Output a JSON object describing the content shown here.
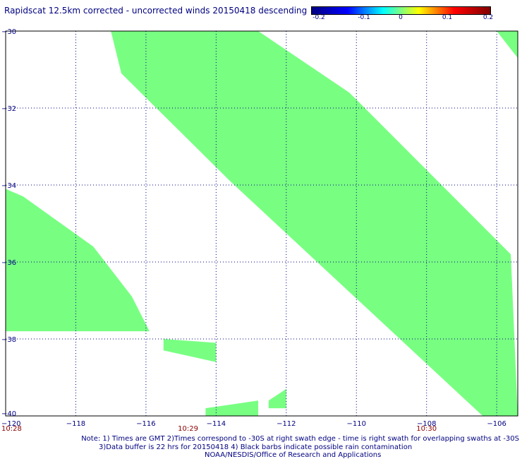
{
  "title": "Rapidscat 12.5km corrected - uncorrected winds 20150418 descending",
  "colorbar": {
    "labels": [
      "-0.2",
      "-0.1",
      "0",
      "0.1",
      "0.2"
    ],
    "values": [
      -0.2,
      -0.1,
      0,
      0.1,
      0.2
    ],
    "stops": [
      "#000080",
      "#0000ff",
      "#00ffff",
      "#ffff00",
      "#ff0000",
      "#800000"
    ]
  },
  "map": {
    "lon_range": [
      -120,
      -105.4
    ],
    "lat_range": [
      -40,
      -30
    ],
    "lon_ticks": [
      {
        "value": -118,
        "label": "−118"
      },
      {
        "value": -116,
        "label": "−116"
      },
      {
        "value": -114,
        "label": "−114"
      },
      {
        "value": -112,
        "label": "−112"
      },
      {
        "value": -110,
        "label": "−110"
      },
      {
        "value": -108,
        "label": "−108"
      },
      {
        "value": -106,
        "label": "−106"
      }
    ],
    "lat_ticks": [
      {
        "value": -30,
        "label": "−30"
      },
      {
        "value": -32,
        "label": "−32"
      },
      {
        "value": -34,
        "label": "−34"
      },
      {
        "value": -36,
        "label": "−36"
      },
      {
        "value": -38,
        "label": "−38"
      },
      {
        "value": -40,
        "label": "−40"
      }
    ],
    "corner_label": "−120",
    "times": [
      {
        "lon": -120,
        "label": "10:28"
      },
      {
        "lon": -114.8,
        "label": "10:29"
      },
      {
        "lon": -108,
        "label": "10:30"
      }
    ],
    "swath_color": "#78ff82",
    "grid_color": "#000080"
  },
  "chart_data": {
    "type": "map",
    "title": "Rapidscat 12.5km corrected - uncorrected winds 20150418 descending",
    "x_axis": "longitude",
    "y_axis": "latitude",
    "xlim": [
      -120,
      -105.4
    ],
    "ylim": [
      -40,
      -30
    ],
    "field_value_range": [
      -0.2,
      0.2
    ],
    "observed_value": 0,
    "swaths": [
      {
        "name": "main swath",
        "polygon": [
          [
            -117,
            -30
          ],
          [
            -112.8,
            -30
          ],
          [
            -110.2,
            -31.6
          ],
          [
            -105.6,
            -35.8
          ],
          [
            -105.4,
            -40
          ],
          [
            -106.4,
            -40
          ],
          [
            -113.6,
            -33.9
          ],
          [
            -116.7,
            -31.1
          ]
        ]
      },
      {
        "name": "west swath",
        "polygon": [
          [
            -120,
            -34.1
          ],
          [
            -119.5,
            -34.3
          ],
          [
            -117.5,
            -35.6
          ],
          [
            -116.4,
            -36.9
          ],
          [
            -115.9,
            -37.8
          ],
          [
            -120,
            -37.8
          ]
        ]
      },
      {
        "name": "small patch 1",
        "polygon": [
          [
            -115.5,
            -38
          ],
          [
            -114,
            -38.1
          ],
          [
            -114,
            -38.6
          ],
          [
            -115.5,
            -38.3
          ]
        ]
      },
      {
        "name": "small patch 2",
        "polygon": [
          [
            -114.3,
            -39.8
          ],
          [
            -112.8,
            -39.6
          ],
          [
            -112.8,
            -40
          ],
          [
            -114.3,
            -40
          ]
        ]
      },
      {
        "name": "small patch 3",
        "polygon": [
          [
            -112.5,
            -39.6
          ],
          [
            -112,
            -39.3
          ],
          [
            -112,
            -39.8
          ],
          [
            -112.5,
            -39.8
          ]
        ]
      },
      {
        "name": "corner patch",
        "polygon": [
          [
            -106,
            -30
          ],
          [
            -105.4,
            -30
          ],
          [
            -105.4,
            -30.7
          ]
        ]
      }
    ]
  },
  "notes": {
    "line1": "Note: 1) Times are GMT 2)Times correspond to -30S at right swath edge - time is right swath for overlapping swaths at -30S",
    "line2": "3)Data buffer is 22 hrs for 20150418 4) Black barbs indicate possible rain contamination",
    "line3": "NOAA/NESDIS/Office of Research and Applications"
  }
}
